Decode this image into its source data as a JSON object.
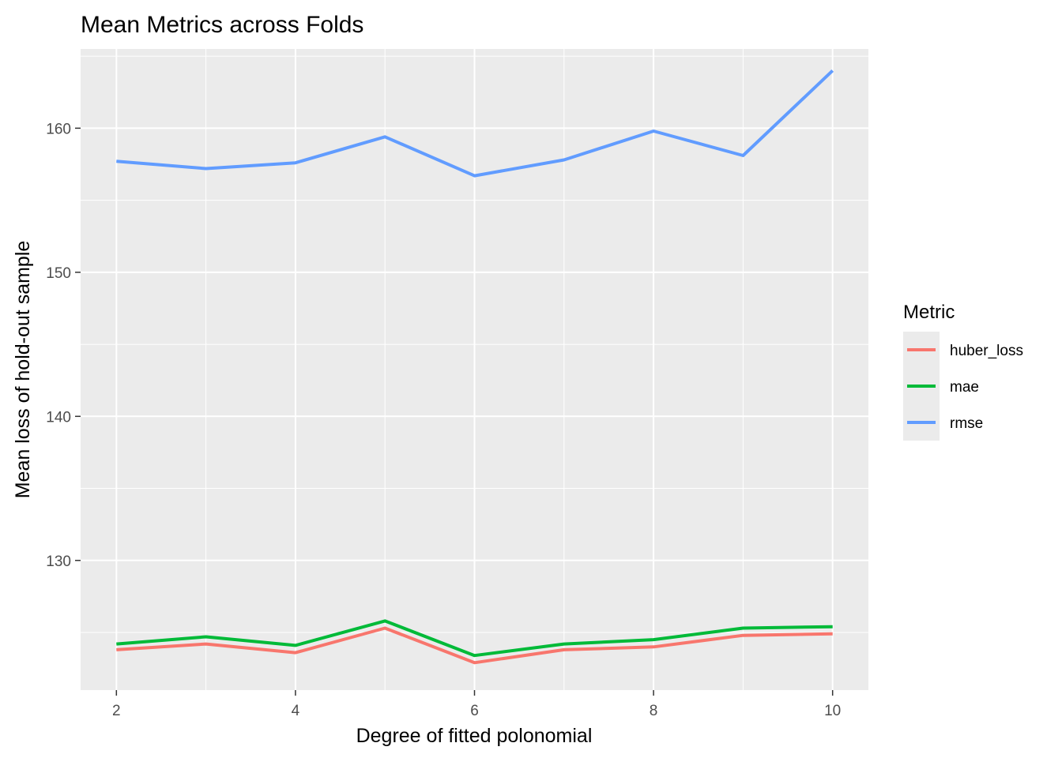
{
  "chart_data": {
    "type": "line",
    "title": "Mean Metrics across Folds",
    "xlabel": "Degree of fitted polonomial",
    "ylabel": "Mean loss of hold-out sample",
    "x": [
      2,
      3,
      4,
      5,
      6,
      7,
      8,
      9,
      10
    ],
    "xlim": [
      1.6,
      10.4
    ],
    "ylim": [
      121.0,
      165.5
    ],
    "x_ticks": [
      2,
      4,
      6,
      8,
      10
    ],
    "y_ticks": [
      130,
      140,
      150,
      160
    ],
    "grid": true,
    "legend": {
      "title": "Metric",
      "position": "right"
    },
    "series": [
      {
        "name": "huber_loss",
        "color": "#F8766D",
        "values": [
          123.8,
          124.2,
          123.6,
          125.3,
          122.9,
          123.8,
          124.0,
          124.8,
          124.9
        ]
      },
      {
        "name": "mae",
        "color": "#00BA38",
        "values": [
          124.2,
          124.7,
          124.1,
          125.8,
          123.4,
          124.2,
          124.5,
          125.3,
          125.4
        ]
      },
      {
        "name": "rmse",
        "color": "#619CFF",
        "values": [
          157.7,
          157.2,
          157.6,
          159.4,
          156.7,
          157.8,
          159.8,
          158.1,
          164.0
        ]
      }
    ]
  }
}
